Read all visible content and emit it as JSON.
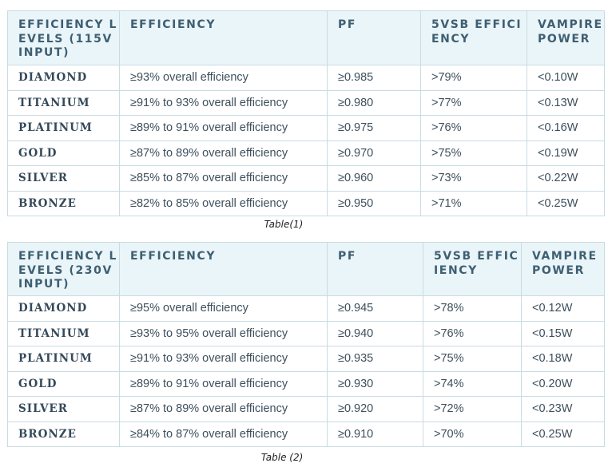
{
  "table1": {
    "headers": [
      "EFFICIENCY LEVELS (115V INPUT)",
      "EFFICIENCY",
      "PF",
      "5VSB EFFICIENCY",
      "VAMPIRE POWER"
    ],
    "rows": [
      [
        "DIAMOND",
        "≥93% overall efficiency",
        "≥0.985",
        ">79%",
        "<0.10W"
      ],
      [
        "TITANIUM",
        "≥91% to 93% overall efficiency",
        "≥0.980",
        ">77%",
        "<0.13W"
      ],
      [
        "PLATINUM",
        "≥89% to 91% overall efficiency",
        "≥0.975",
        ">76%",
        "<0.16W"
      ],
      [
        "GOLD",
        "≥87% to 89% overall efficiency",
        "≥0.970",
        ">75%",
        "<0.19W"
      ],
      [
        "SILVER",
        "≥85% to 87% overall efficiency",
        "≥0.960",
        ">73%",
        "<0.22W"
      ],
      [
        "BRONZE",
        "≥82% to 85% overall efficiency",
        "≥0.950",
        ">71%",
        "<0.25W"
      ]
    ],
    "caption": "Table(1)"
  },
  "table2": {
    "headers": [
      "EFFICIENCY LEVELS (230V INPUT)",
      "EFFICIENCY",
      "PF",
      "5VSB EFFICIENCY",
      "VAMPIRE POWER"
    ],
    "rows": [
      [
        "DIAMOND",
        "≥95% overall efficiency",
        "≥0.945",
        ">78%",
        "<0.12W"
      ],
      [
        "TITANIUM",
        "≥93% to 95% overall efficiency",
        "≥0.940",
        ">76%",
        "<0.15W"
      ],
      [
        "PLATINUM",
        "≥91% to 93% overall efficiency",
        "≥0.935",
        ">75%",
        "<0.18W"
      ],
      [
        "GOLD",
        "≥89% to 91% overall efficiency",
        "≥0.930",
        ">74%",
        "<0.20W"
      ],
      [
        "SILVER",
        "≥87% to 89% overall efficiency",
        "≥0.920",
        ">72%",
        "<0.23W"
      ],
      [
        "BRONZE",
        "≥84% to 87% overall efficiency",
        "≥0.910",
        ">70%",
        "<0.25W"
      ]
    ],
    "caption": "Table (2)"
  }
}
